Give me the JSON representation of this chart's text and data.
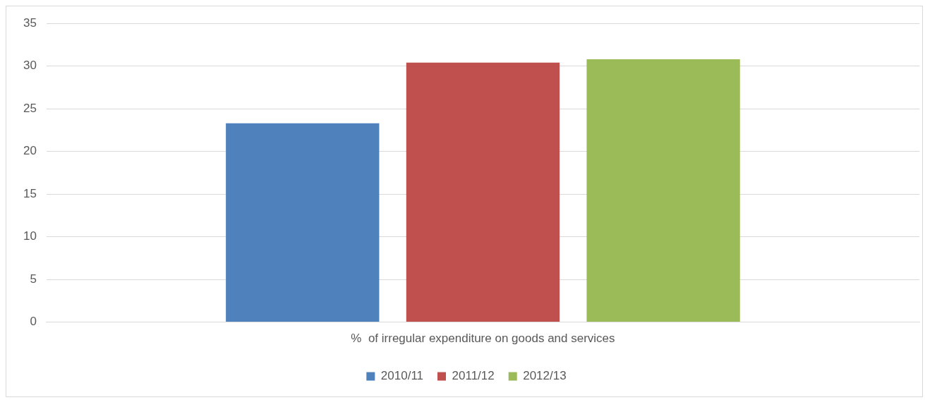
{
  "chart_data": {
    "type": "bar",
    "categories": [
      "%  of irregular expenditure on goods and services"
    ],
    "series": [
      {
        "name": "2010/11",
        "color": "#4f81bd",
        "values": [
          23.3
        ]
      },
      {
        "name": "2011/12",
        "color": "#c0504d",
        "values": [
          30.4
        ]
      },
      {
        "name": "2012/13",
        "color": "#9bbb59",
        "values": [
          30.8
        ]
      }
    ],
    "ylim": [
      0,
      35
    ],
    "yticks": [
      0,
      5,
      10,
      15,
      20,
      25,
      30,
      35
    ],
    "grid": "y",
    "legend": "bottom"
  }
}
